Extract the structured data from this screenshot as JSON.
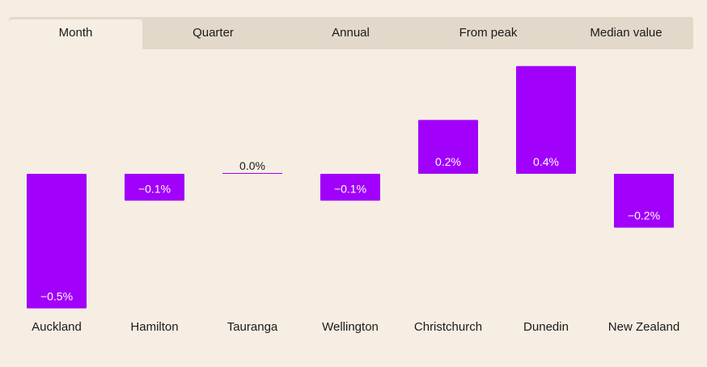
{
  "tabs": [
    {
      "label": "Month",
      "active": true
    },
    {
      "label": "Quarter",
      "active": false
    },
    {
      "label": "Annual",
      "active": false
    },
    {
      "label": "From peak",
      "active": false
    },
    {
      "label": "Median value",
      "active": false
    }
  ],
  "chart_data": {
    "type": "bar",
    "categories": [
      "Auckland",
      "Hamilton",
      "Tauranga",
      "Wellington",
      "Christchurch",
      "Dunedin",
      "New Zealand"
    ],
    "values": [
      -0.5,
      -0.1,
      0.0,
      -0.1,
      0.2,
      0.4,
      -0.2
    ],
    "value_labels": [
      "−0.5%",
      "−0.1%",
      "0.0%",
      "−0.1%",
      "0.2%",
      "0.4%",
      "−0.2%"
    ],
    "bar_color": "#a100fa",
    "label_color_inside": "#ffffff",
    "label_color_outside": "#1a1a1a",
    "ylim": [
      -0.5,
      0.4
    ],
    "grid": false,
    "legend": "none"
  }
}
